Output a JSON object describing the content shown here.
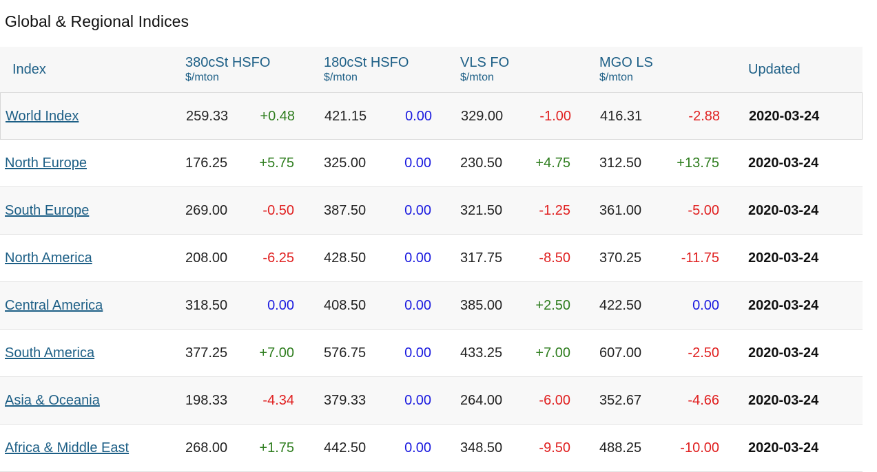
{
  "page_title": "Global & Regional Indices",
  "colors": {
    "header": "#1d5f86",
    "positive": "#2e7d1e",
    "negative": "#e02020",
    "unchanged": "#1a1adf"
  },
  "header": {
    "index": "Index",
    "cols": [
      {
        "name": "380cSt HSFO",
        "unit": "$/mton"
      },
      {
        "name": "180cSt HSFO",
        "unit": "$/mton"
      },
      {
        "name": "VLS FO",
        "unit": "$/mton"
      },
      {
        "name": "MGO LS",
        "unit": "$/mton"
      }
    ],
    "updated": "Updated"
  },
  "rows": [
    {
      "name": "World Index",
      "v": [
        [
          "259.33",
          "+0.48"
        ],
        [
          "421.15",
          "0.00"
        ],
        [
          "329.00",
          "-1.00"
        ],
        [
          "416.31",
          "-2.88"
        ]
      ],
      "updated": "2020-03-24"
    },
    {
      "name": "North Europe",
      "v": [
        [
          "176.25",
          "+5.75"
        ],
        [
          "325.00",
          "0.00"
        ],
        [
          "230.50",
          "+4.75"
        ],
        [
          "312.50",
          "+13.75"
        ]
      ],
      "updated": "2020-03-24"
    },
    {
      "name": "South Europe",
      "v": [
        [
          "269.00",
          "-0.50"
        ],
        [
          "387.50",
          "0.00"
        ],
        [
          "321.50",
          "-1.25"
        ],
        [
          "361.00",
          "-5.00"
        ]
      ],
      "updated": "2020-03-24"
    },
    {
      "name": "North America",
      "v": [
        [
          "208.00",
          "-6.25"
        ],
        [
          "428.50",
          "0.00"
        ],
        [
          "317.75",
          "-8.50"
        ],
        [
          "370.25",
          "-11.75"
        ]
      ],
      "updated": "2020-03-24"
    },
    {
      "name": "Central America",
      "v": [
        [
          "318.50",
          "0.00"
        ],
        [
          "408.50",
          "0.00"
        ],
        [
          "385.00",
          "+2.50"
        ],
        [
          "422.50",
          "0.00"
        ]
      ],
      "updated": "2020-03-24"
    },
    {
      "name": "South America",
      "v": [
        [
          "377.25",
          "+7.00"
        ],
        [
          "576.75",
          "0.00"
        ],
        [
          "433.25",
          "+7.00"
        ],
        [
          "607.00",
          "-2.50"
        ]
      ],
      "updated": "2020-03-24"
    },
    {
      "name": "Asia & Oceania",
      "v": [
        [
          "198.33",
          "-4.34"
        ],
        [
          "379.33",
          "0.00"
        ],
        [
          "264.00",
          "-6.00"
        ],
        [
          "352.67",
          "-4.66"
        ]
      ],
      "updated": "2020-03-24"
    },
    {
      "name": "Africa & Middle East",
      "v": [
        [
          "268.00",
          "+1.75"
        ],
        [
          "442.50",
          "0.00"
        ],
        [
          "348.50",
          "-9.50"
        ],
        [
          "488.25",
          "-10.00"
        ]
      ],
      "updated": "2020-03-24"
    }
  ]
}
